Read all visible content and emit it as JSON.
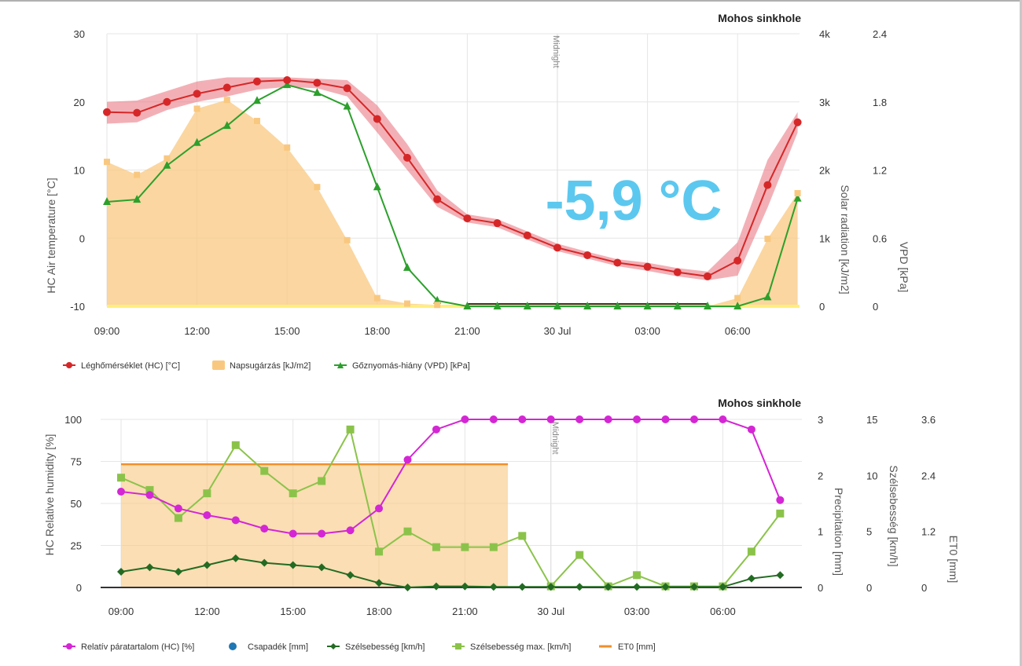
{
  "chart_data": [
    {
      "type": "line",
      "title": "Mohos sinkhole",
      "overlay_value": "-5,9 °C",
      "midnight_label": "Midnight",
      "x_tick_labels": [
        "09:00",
        "12:00",
        "15:00",
        "18:00",
        "21:00",
        "30 Jul",
        "03:00",
        "06:00"
      ],
      "x_hours": [
        9,
        10,
        11,
        12,
        13,
        14,
        15,
        16,
        17,
        18,
        19,
        20,
        21,
        22,
        23,
        24,
        25,
        26,
        27,
        28,
        29,
        30,
        31,
        32
      ],
      "axes": {
        "left": {
          "label": "HC Air temperature [°C]",
          "range": [
            -10,
            30
          ],
          "ticks": [
            "-10",
            "0",
            "10",
            "20",
            "30"
          ]
        },
        "right1": {
          "label": "Solar radiation [kJ/m2]",
          "range": [
            0,
            4000
          ],
          "ticks": [
            "0",
            "1k",
            "2k",
            "3k",
            "4k"
          ]
        },
        "right2": {
          "label": "VPD [kPa]",
          "range": [
            0,
            2.4
          ],
          "ticks": [
            "0",
            "0.6",
            "1.2",
            "1.8",
            "2.4"
          ]
        }
      },
      "series": [
        {
          "name": "Léghőmérséklet (HC) [°C]",
          "color": "#d62728",
          "marker": "circle",
          "axis": "left",
          "values": [
            18.5,
            18.4,
            20.0,
            21.2,
            22.1,
            23.0,
            23.2,
            22.8,
            22.0,
            17.5,
            11.8,
            5.7,
            2.9,
            2.2,
            0.4,
            -1.4,
            -2.5,
            -3.6,
            -4.2,
            -5.0,
            -5.6,
            -3.3,
            7.8,
            17.0
          ],
          "band_low": [
            16.8,
            17.0,
            18.8,
            20.0,
            20.8,
            21.8,
            22.2,
            22.0,
            20.8,
            15.5,
            10.0,
            4.6,
            2.3,
            1.6,
            -0.2,
            -1.9,
            -3.0,
            -4.1,
            -4.8,
            -5.6,
            -6.2,
            -5.5,
            4.5,
            15.5
          ],
          "band_high": [
            20.0,
            20.2,
            21.6,
            23.0,
            23.6,
            23.6,
            23.6,
            23.4,
            23.2,
            19.5,
            13.8,
            7.0,
            3.5,
            2.8,
            1.0,
            -0.8,
            -2.0,
            -3.1,
            -3.6,
            -4.4,
            -4.9,
            -0.6,
            11.5,
            18.5
          ]
        },
        {
          "name": "Napsugárzás [kJ/m2]",
          "color": "#f9c880",
          "marker": "square",
          "axis": "right1",
          "values": [
            2120,
            1930,
            2170,
            2900,
            3030,
            2720,
            2330,
            1750,
            970,
            120,
            40,
            20,
            0,
            0,
            0,
            0,
            0,
            0,
            0,
            0,
            0,
            120,
            990,
            1660
          ]
        },
        {
          "name": "Gőznyomás-hiány (VPD) [kPa]",
          "color": "#2ca02c",
          "marker": "triangle",
          "axis": "right2",
          "values": [
            0.92,
            0.94,
            1.24,
            1.44,
            1.59,
            1.81,
            1.95,
            1.88,
            1.76,
            1.05,
            0.34,
            0.05,
            0.0,
            0.0,
            0.0,
            0.0,
            0.0,
            0.0,
            0.0,
            0.0,
            0.0,
            0.0,
            0.08,
            0.95
          ]
        }
      ],
      "legend": [
        "Léghőmérséklet (HC) [°C]",
        "Napsugárzás [kJ/m2]",
        "Gőznyomás-hiány (VPD) [kPa]"
      ]
    },
    {
      "type": "line",
      "title": "Mohos sinkhole",
      "midnight_label": "Midnight",
      "x_tick_labels": [
        "09:00",
        "12:00",
        "15:00",
        "18:00",
        "21:00",
        "30 Jul",
        "03:00",
        "06:00"
      ],
      "x_hours": [
        9,
        10,
        11,
        12,
        13,
        14,
        15,
        16,
        17,
        18,
        19,
        20,
        21,
        22,
        23,
        24,
        25,
        26,
        27,
        28,
        29,
        30,
        31,
        32
      ],
      "axes": {
        "left": {
          "label": "HC Relative humidity [%]",
          "range": [
            0,
            100
          ],
          "ticks": [
            "0",
            "25",
            "50",
            "75",
            "100"
          ]
        },
        "right1": {
          "label": "Precipitation [mm]",
          "range": [
            0,
            3
          ],
          "ticks": [
            "0",
            "1",
            "2",
            "3"
          ]
        },
        "right2": {
          "label": "Szélsebesség [km/h]",
          "range": [
            0,
            15
          ],
          "ticks": [
            "0",
            "5",
            "10",
            "15"
          ]
        },
        "right3": {
          "label": "ET0 [mm]",
          "range": [
            0,
            3.6
          ],
          "ticks": [
            "0",
            "1.2",
            "2.4",
            "3.6"
          ]
        }
      },
      "series": [
        {
          "name": "Relatív páratartalom (HC) [%]",
          "color": "#d426d4",
          "marker": "circle",
          "axis": "left",
          "values": [
            57,
            55,
            47,
            43,
            40,
            35,
            32,
            32,
            34,
            47,
            76,
            94,
            100,
            100,
            100,
            100,
            100,
            100,
            100,
            100,
            100,
            100,
            94,
            52
          ]
        },
        {
          "name": "Csapadék [mm]",
          "color": "#1f77b4",
          "marker": "circle",
          "axis": "right1",
          "values": [
            0,
            0,
            0,
            0,
            0,
            0,
            0,
            0,
            0,
            0,
            0,
            0,
            0,
            0,
            0,
            0,
            0,
            0,
            0,
            0,
            0,
            0,
            0,
            0
          ]
        },
        {
          "name": "Szélsebesség [km/h]",
          "color": "#236b23",
          "marker": "diamond",
          "axis": "right2",
          "values": [
            1.4,
            1.8,
            1.4,
            2.0,
            2.6,
            2.2,
            2.0,
            1.8,
            1.1,
            0.4,
            0.0,
            0.1,
            0.1,
            0.05,
            0.05,
            0.05,
            0.05,
            0.05,
            0.05,
            0.05,
            0.05,
            0.05,
            0.8,
            1.1
          ]
        },
        {
          "name": "Szélsebesség max. [km/h]",
          "color": "#8bc34a",
          "marker": "square",
          "axis": "right2",
          "values": [
            9.8,
            8.7,
            6.2,
            8.4,
            12.7,
            10.4,
            8.4,
            9.5,
            14.1,
            3.2,
            5.0,
            3.6,
            3.6,
            3.6,
            4.6,
            0.1,
            2.9,
            0.1,
            1.1,
            0.1,
            0.1,
            0.1,
            3.2,
            6.6
          ]
        },
        {
          "name": "ET0 [mm]",
          "color": "#f28e2b",
          "axis": "right3",
          "type": "area",
          "start_hour": 9,
          "end_hour": 22.5,
          "value": 2.64
        }
      ],
      "legend": [
        "Relatív páratartalom (HC) [%]",
        "Csapadék [mm]",
        "Szélsebesség [km/h]",
        "Szélsebesség max. [km/h]",
        "ET0 [mm]"
      ]
    }
  ]
}
